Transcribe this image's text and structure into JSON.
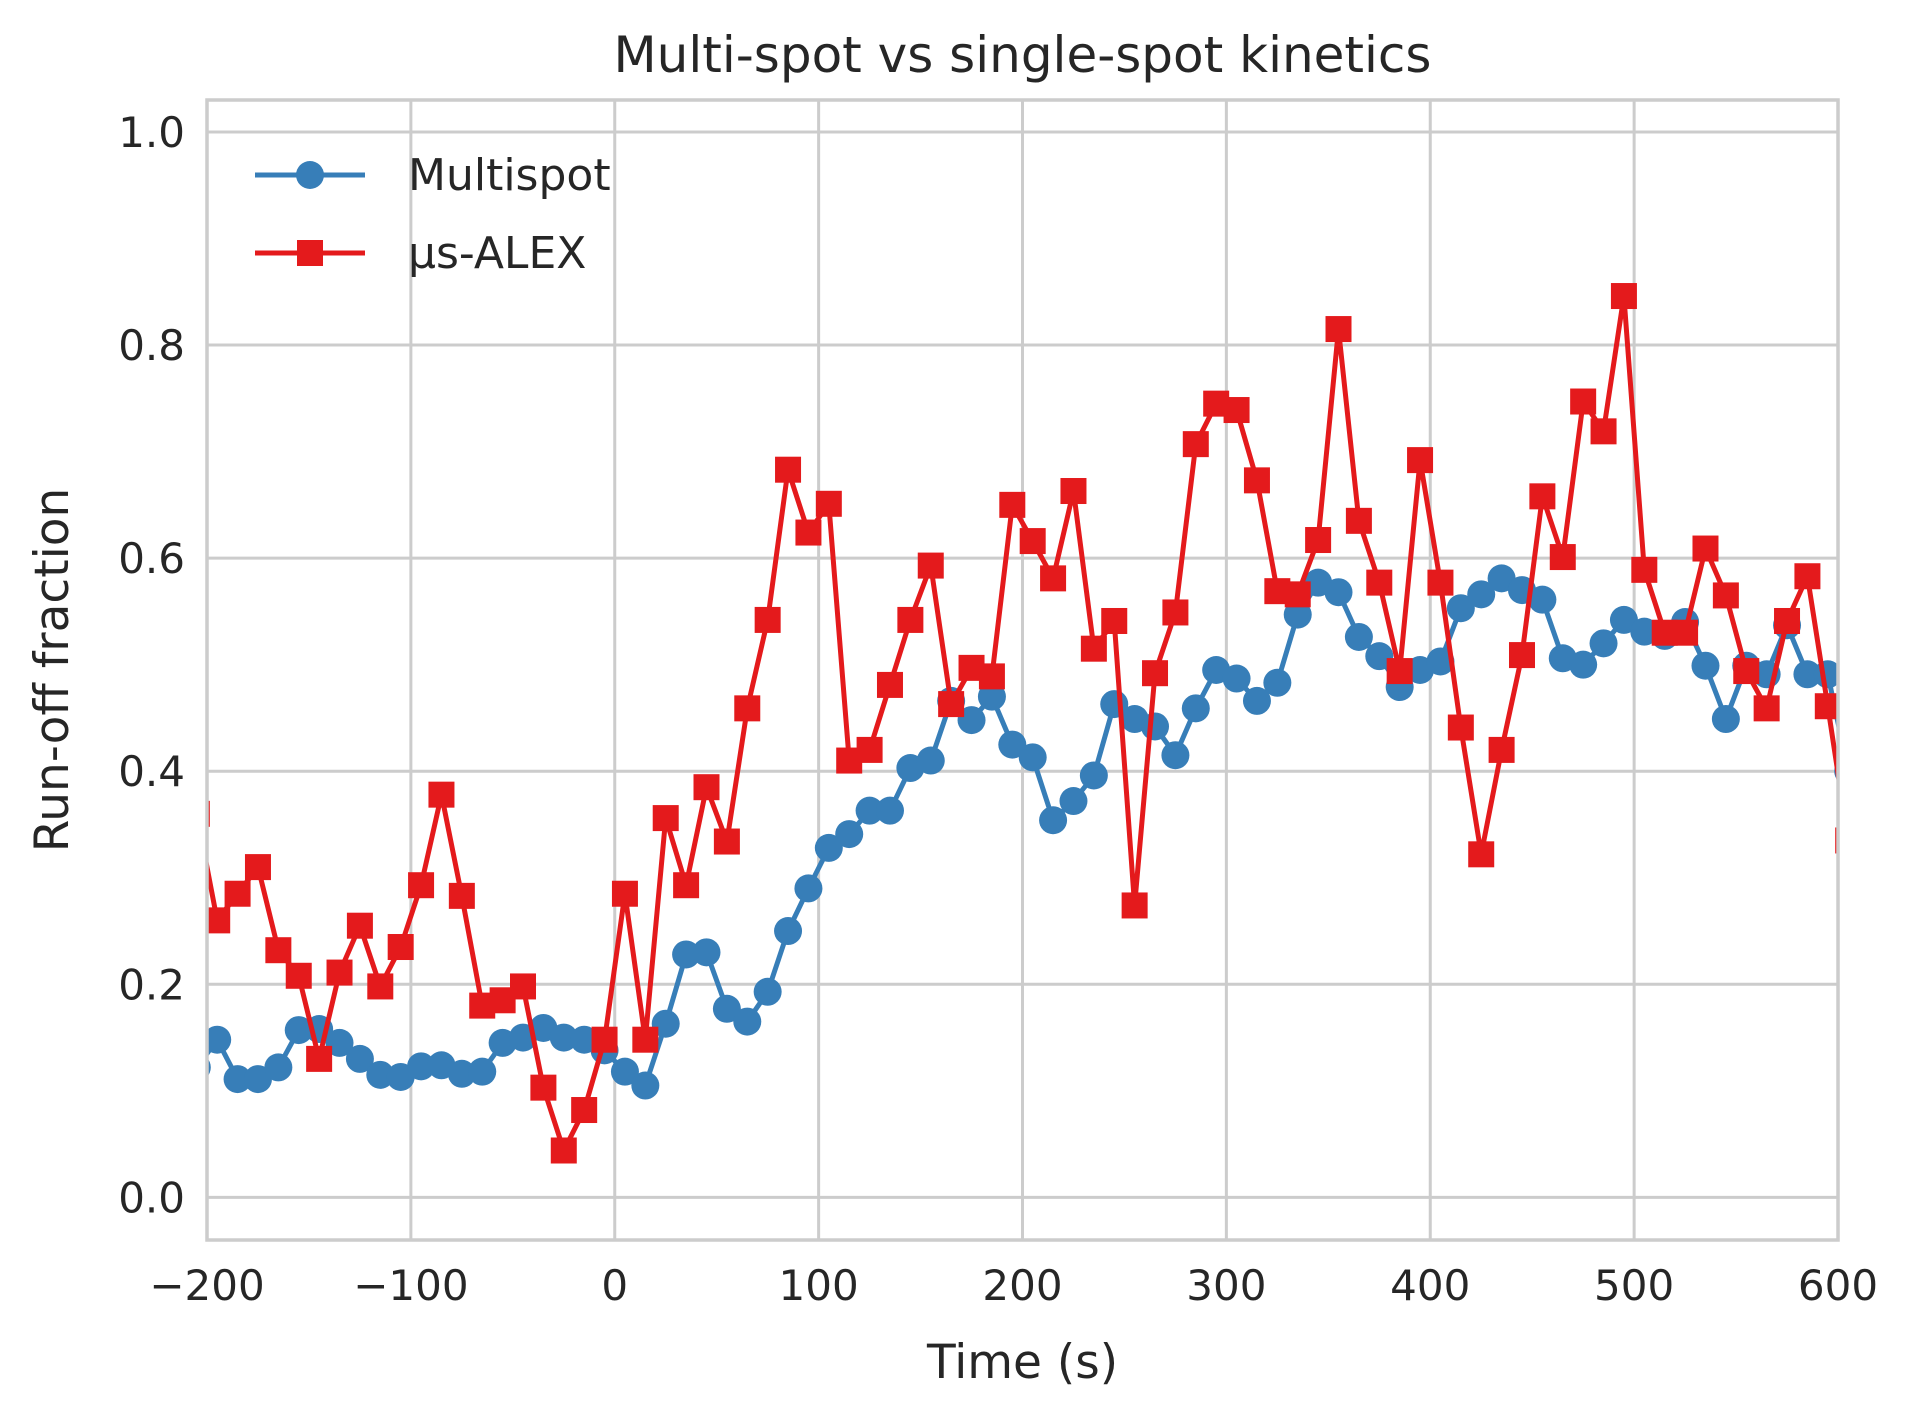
{
  "chart_data": {
    "type": "line",
    "title": "Multi-spot vs single-spot kinetics",
    "xlabel": "Time (s)",
    "ylabel": "Run-off fraction",
    "xlim": [
      -200,
      600
    ],
    "ylim": [
      -0.04,
      1.03
    ],
    "xticks": [
      -200,
      -100,
      0,
      100,
      200,
      300,
      400,
      500,
      600
    ],
    "xtick_labels": [
      "−200",
      "−100",
      "0",
      "100",
      "200",
      "300",
      "400",
      "500",
      "600"
    ],
    "yticks": [
      0.0,
      0.2,
      0.4,
      0.6,
      0.8,
      1.0
    ],
    "ytick_labels": [
      "0.0",
      "0.2",
      "0.4",
      "0.6",
      "0.8",
      "1.0"
    ],
    "grid": true,
    "legend_position": "upper-left",
    "series": [
      {
        "name": "Multispot",
        "color": "#377eb8",
        "marker": "circle",
        "x": [
          -205,
          -195,
          -185,
          -175,
          -165,
          -155,
          -145,
          -135,
          -125,
          -115,
          -105,
          -95,
          -85,
          -75,
          -65,
          -55,
          -45,
          -35,
          -25,
          -15,
          -5,
          5,
          15,
          25,
          35,
          45,
          55,
          65,
          75,
          85,
          95,
          105,
          115,
          125,
          135,
          145,
          155,
          165,
          175,
          185,
          195,
          205,
          215,
          225,
          235,
          245,
          255,
          265,
          275,
          285,
          295,
          305,
          315,
          325,
          335,
          345,
          355,
          365,
          375,
          385,
          395,
          405,
          415,
          425,
          435,
          445,
          455,
          465,
          475,
          485,
          495,
          505,
          515,
          525,
          535,
          545,
          555,
          565,
          575,
          585,
          595,
          605
        ],
        "y": [
          0.122,
          0.148,
          0.111,
          0.111,
          0.122,
          0.157,
          0.158,
          0.145,
          0.13,
          0.115,
          0.113,
          0.123,
          0.124,
          0.116,
          0.118,
          0.145,
          0.15,
          0.159,
          0.15,
          0.148,
          0.138,
          0.118,
          0.105,
          0.163,
          0.228,
          0.23,
          0.177,
          0.165,
          0.193,
          0.25,
          0.29,
          0.328,
          0.341,
          0.363,
          0.363,
          0.403,
          0.41,
          0.466,
          0.448,
          0.47,
          0.425,
          0.413,
          0.354,
          0.372,
          0.396,
          0.463,
          0.449,
          0.442,
          0.415,
          0.459,
          0.495,
          0.487,
          0.466,
          0.483,
          0.547,
          0.577,
          0.568,
          0.526,
          0.508,
          0.479,
          0.495,
          0.503,
          0.553,
          0.566,
          0.581,
          0.57,
          0.561,
          0.506,
          0.5,
          0.52,
          0.542,
          0.531,
          0.527,
          0.54,
          0.499,
          0.449,
          0.499,
          0.491,
          0.537,
          0.491,
          0.491,
          0.4
        ]
      },
      {
        "name": "µs-ALEX",
        "color": "#e41a1c",
        "marker": "square",
        "x": [
          -205,
          -195,
          -185,
          -175,
          -165,
          -155,
          -145,
          -135,
          -125,
          -115,
          -105,
          -95,
          -85,
          -75,
          -65,
          -55,
          -45,
          -35,
          -25,
          -15,
          -5,
          5,
          15,
          25,
          35,
          45,
          55,
          65,
          75,
          85,
          95,
          105,
          115,
          125,
          135,
          145,
          155,
          165,
          175,
          185,
          195,
          205,
          215,
          225,
          235,
          245,
          255,
          265,
          275,
          285,
          295,
          305,
          315,
          325,
          335,
          345,
          355,
          365,
          375,
          385,
          395,
          405,
          415,
          425,
          435,
          445,
          455,
          465,
          475,
          485,
          495,
          505,
          515,
          525,
          535,
          545,
          555,
          565,
          575,
          585,
          595,
          605
        ],
        "y": [
          0.36,
          0.26,
          0.285,
          0.31,
          0.232,
          0.208,
          0.13,
          0.211,
          0.255,
          0.198,
          0.235,
          0.293,
          0.378,
          0.283,
          0.18,
          0.185,
          0.198,
          0.103,
          0.044,
          0.082,
          0.148,
          0.285,
          0.148,
          0.356,
          0.293,
          0.385,
          0.334,
          0.459,
          0.542,
          0.683,
          0.624,
          0.651,
          0.41,
          0.42,
          0.481,
          0.542,
          0.593,
          0.463,
          0.497,
          0.489,
          0.65,
          0.616,
          0.581,
          0.663,
          0.515,
          0.541,
          0.274,
          0.492,
          0.549,
          0.707,
          0.745,
          0.739,
          0.673,
          0.569,
          0.566,
          0.617,
          0.815,
          0.635,
          0.577,
          0.494,
          0.692,
          0.577,
          0.441,
          0.322,
          0.42,
          0.509,
          0.658,
          0.601,
          0.747,
          0.719,
          0.846,
          0.589,
          0.53,
          0.53,
          0.609,
          0.565,
          0.494,
          0.459,
          0.541,
          0.583,
          0.461,
          0.335
        ]
      }
    ]
  }
}
